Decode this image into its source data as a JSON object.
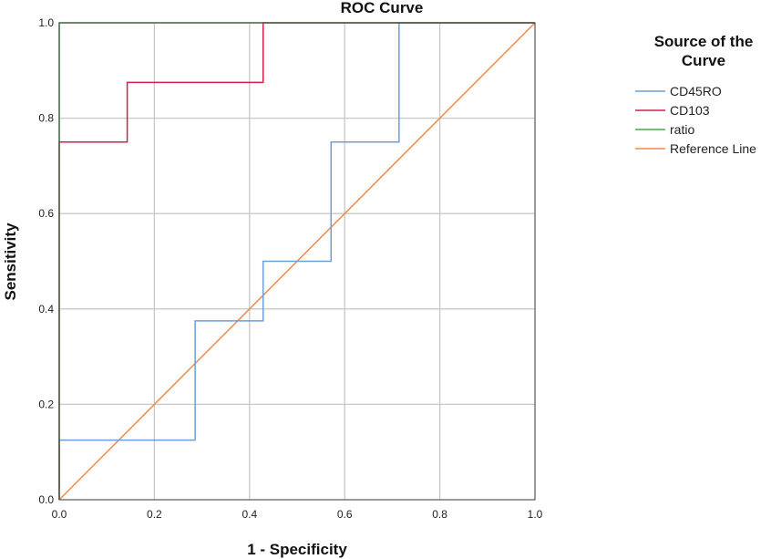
{
  "chart_data": {
    "type": "line",
    "title": "ROC Curve",
    "xlabel": "1 - Specificity",
    "ylabel": "Sensitivity",
    "xlim": [
      0,
      1
    ],
    "ylim": [
      0,
      1
    ],
    "xticks": [
      "0.0",
      "0.2",
      "0.4",
      "0.6",
      "0.8",
      "1.0"
    ],
    "yticks": [
      "0.0",
      "0.2",
      "0.4",
      "0.6",
      "0.8",
      "1.0"
    ],
    "grid": true,
    "legend": {
      "title_line1": "Source of the",
      "title_line2": "Curve",
      "placement": "right"
    },
    "series": [
      {
        "name": "CD45RO",
        "color": "#6a9fd8",
        "step": true,
        "x": [
          0,
          0,
          0.2857,
          0.2857,
          0.4286,
          0.4286,
          0.5714,
          0.5714,
          0.7143,
          0.7143,
          1
        ],
        "y": [
          0,
          0.125,
          0.125,
          0.375,
          0.375,
          0.5,
          0.5,
          0.75,
          0.75,
          1,
          1
        ]
      },
      {
        "name": "CD103",
        "color": "#d11f4a",
        "step": true,
        "x": [
          0,
          0,
          0.1429,
          0.1429,
          0.4286,
          0.4286,
          1
        ],
        "y": [
          0,
          0.75,
          0.75,
          0.875,
          0.875,
          1,
          1
        ]
      },
      {
        "name": "ratio",
        "color": "#4aa84a",
        "step": true,
        "x": [
          0,
          0,
          1
        ],
        "y": [
          0,
          1,
          1
        ]
      },
      {
        "name": "Reference Line",
        "color": "#f08a4b",
        "step": false,
        "x": [
          0,
          1
        ],
        "y": [
          0,
          1
        ]
      }
    ]
  }
}
